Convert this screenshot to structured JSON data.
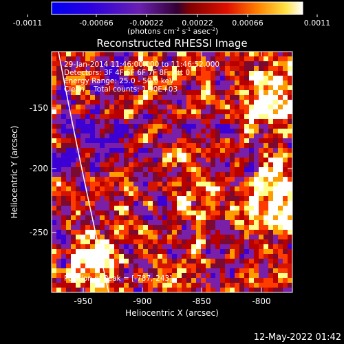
{
  "colorbar": {
    "ticks": [
      "-0.0011",
      "-0.00066",
      "-0.00022",
      "0.00022",
      "0.00066",
      "0.0011"
    ],
    "units_label": "(photons cm",
    "units_exp1": "-2",
    "units_s": " s",
    "units_exp2": "-1",
    "units_asec": " asec",
    "units_exp3": "-2",
    "units_close": ")"
  },
  "image": {
    "title": "Reconstructed RHESSI Image",
    "info_lines": [
      "29-Jan-2014 11:46:00.000 to 11:46:52.000",
      "Detectors: 3F 4F 5F 6F 7F 8F, Att 0",
      "Energy Range: 25.0 - 50.0 keV",
      "Clean    Total counts: 1.90E+03"
    ],
    "peak_label": "Position of Peak = [-787,-243]",
    "xlabel": "Heliocentric X (arcsec)",
    "ylabel": "Heliocentric Y (arcsec)",
    "xticks": [
      "-950",
      "-900",
      "-850",
      "-800"
    ],
    "yticks": [
      "-150",
      "-200",
      "-250"
    ],
    "timestamp": "12-May-2022 01:42"
  },
  "colors": {
    "background": "#000000",
    "foreground": "#ffffff",
    "colormap": [
      "#0000ff",
      "#3c00d4",
      "#7a1fa8",
      "#b80000",
      "#ff3c00",
      "#ff9c00",
      "#ffff8c",
      "#ffffff"
    ]
  }
}
